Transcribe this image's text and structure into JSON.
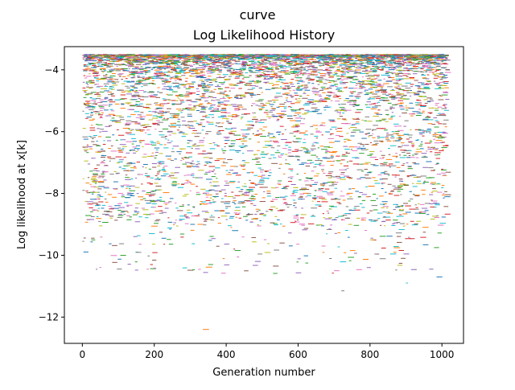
{
  "figure": {
    "suptitle": "curve"
  },
  "chart_data": {
    "type": "scatter",
    "title": "Log Likelihood History",
    "xlabel": "Generation number",
    "ylabel": "Log likelihood at x[k]",
    "xlim": [
      -50,
      1060
    ],
    "ylim": [
      -12.85,
      -3.25
    ],
    "xticks": [
      0,
      200,
      400,
      600,
      800,
      1000
    ],
    "yticks": [
      -12,
      -10,
      -8,
      -6,
      -4
    ],
    "ytick_labels": [
      "−12",
      "−10",
      "−8",
      "−6",
      "−4"
    ],
    "grid": false,
    "legend": "none",
    "marker": "short horizontal dash",
    "generations": [
      0,
      1010
    ],
    "value_range": [
      -12.4,
      -3.5
    ],
    "dense_band": [
      -5.0,
      -3.5
    ],
    "colors": [
      "#1f77b4",
      "#ff7f0e",
      "#2ca02c",
      "#d62728",
      "#9467bd",
      "#8c564b",
      "#e377c2",
      "#7f7f7f",
      "#bcbd22",
      "#17becf"
    ],
    "sample_points": [
      {
        "x": 5,
        "y": -3.52
      },
      {
        "x": 12,
        "y": -3.9
      },
      {
        "x": 20,
        "y": -4.35
      },
      {
        "x": 30,
        "y": -5.1
      },
      {
        "x": 40,
        "y": -5.9
      },
      {
        "x": 0,
        "y": -6.5
      },
      {
        "x": 60,
        "y": -7.3
      },
      {
        "x": 0,
        "y": -7.9
      },
      {
        "x": 180,
        "y": -6.8
      },
      {
        "x": 185,
        "y": -9.3
      },
      {
        "x": 300,
        "y": -9.0
      },
      {
        "x": 335,
        "y": -12.4
      },
      {
        "x": 350,
        "y": -10.3
      },
      {
        "x": 420,
        "y": -9.8
      },
      {
        "x": 480,
        "y": -10.2
      },
      {
        "x": 530,
        "y": -10.35
      },
      {
        "x": 700,
        "y": -10.5
      },
      {
        "x": 720,
        "y": -11.15
      },
      {
        "x": 800,
        "y": -9.5
      },
      {
        "x": 900,
        "y": -10.9
      },
      {
        "x": 985,
        "y": -10.7
      },
      {
        "x": 1000,
        "y": -8.05
      },
      {
        "x": 1010,
        "y": -3.55
      },
      {
        "x": 500,
        "y": -4.0
      },
      {
        "x": 650,
        "y": -4.7
      },
      {
        "x": 760,
        "y": -5.6
      },
      {
        "x": 870,
        "y": -6.7
      },
      {
        "x": 950,
        "y": -7.6
      }
    ]
  }
}
